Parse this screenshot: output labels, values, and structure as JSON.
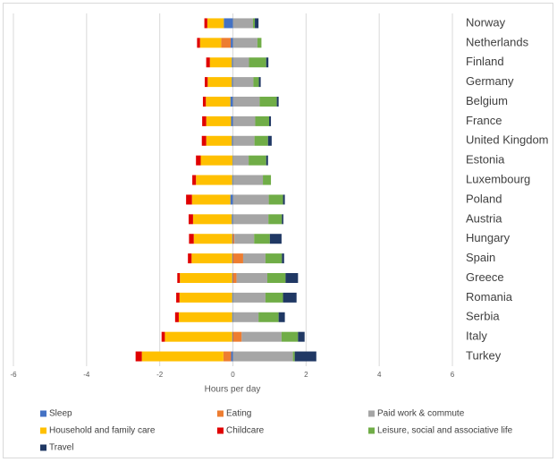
{
  "chart_data": {
    "type": "bar",
    "orientation": "horizontal",
    "stacked": true,
    "x_label": "Hours per day",
    "categories": [
      "Norway",
      "Netherlands",
      "Finland",
      "Germany",
      "Belgium",
      "France",
      "United Kingdom",
      "Estonia",
      "Luxembourg",
      "Poland",
      "Austria",
      "Hungary",
      "Spain",
      "Greece",
      "Romania",
      "Serbia",
      "Italy",
      "Turkey"
    ],
    "series": [
      {
        "name": "Sleep",
        "color": "#4472c4",
        "values": [
          -0.25,
          -0.06,
          -0.03,
          -0.03,
          -0.07,
          -0.05,
          -0.03,
          -0.01,
          -0.02,
          -0.07,
          -0.03,
          -0.02,
          -0.02,
          -0.02,
          -0.02,
          -0.02,
          -0.02,
          -0.05
        ]
      },
      {
        "name": "Eating",
        "color": "#ed7d31",
        "values": [
          0,
          -0.26,
          0,
          0,
          0,
          0,
          0,
          0,
          0,
          0,
          0,
          0.04,
          0.28,
          0.1,
          0,
          0,
          0.24,
          -0.21
        ]
      },
      {
        "name": "Paid work & commute",
        "color": "#a5a5a5",
        "values": [
          0.55,
          0.67,
          0.44,
          0.56,
          0.73,
          0.61,
          0.59,
          0.43,
          0.82,
          0.98,
          0.97,
          0.54,
          0.61,
          0.84,
          0.89,
          0.7,
          1.09,
          1.64
        ]
      },
      {
        "name": "Household and family care",
        "color": "#ffc000",
        "values": [
          -0.45,
          -0.58,
          -0.6,
          -0.66,
          -0.67,
          -0.68,
          -0.7,
          -0.87,
          -0.99,
          -1.05,
          -1.06,
          -1.05,
          -1.11,
          -1.43,
          -1.44,
          -1.46,
          -1.84,
          -2.23
        ]
      },
      {
        "name": "Childcare",
        "color": "#e00000",
        "values": [
          -0.08,
          -0.08,
          -0.1,
          -0.08,
          -0.08,
          -0.11,
          -0.12,
          -0.13,
          -0.1,
          -0.16,
          -0.12,
          -0.13,
          -0.1,
          -0.07,
          -0.09,
          -0.1,
          -0.09,
          -0.17
        ]
      },
      {
        "name": "Leisure, social and associative life",
        "color": "#70ad47",
        "values": [
          0.05,
          0.11,
          0.47,
          0.15,
          0.47,
          0.38,
          0.37,
          0.48,
          0.22,
          0.39,
          0.37,
          0.43,
          0.45,
          0.5,
          0.48,
          0.55,
          0.45,
          0.05
        ]
      },
      {
        "name": "Travel",
        "color": "#203864",
        "values": [
          0.1,
          0,
          0.06,
          0.05,
          0.05,
          0.05,
          0.1,
          0.05,
          0,
          0.05,
          0.04,
          0.32,
          0.06,
          0.34,
          0.37,
          0.17,
          0.18,
          0.59
        ]
      }
    ],
    "xlim": [
      -6,
      6
    ],
    "xticks": [
      -6,
      -4,
      -2,
      0,
      2,
      4,
      6
    ],
    "grid": true,
    "legend": "bottom"
  }
}
